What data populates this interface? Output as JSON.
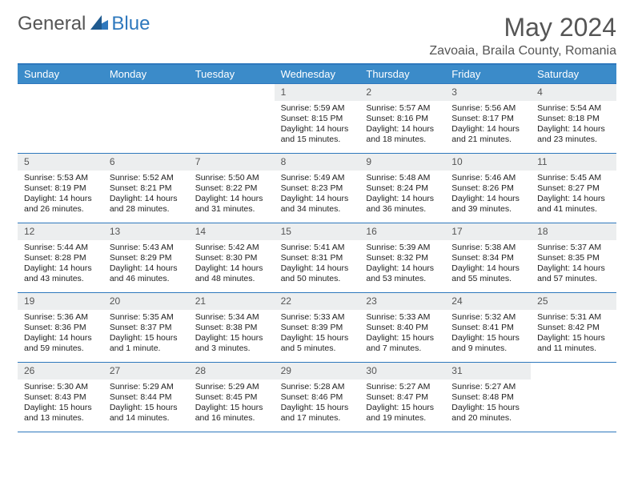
{
  "logo": {
    "general": "General",
    "blue": "Blue"
  },
  "title": "May 2024",
  "location": "Zavoaia, Braila County, Romania",
  "colors": {
    "header_bg": "#3b8bc9",
    "daynum_bg": "#eceeef",
    "border": "#2e78bd",
    "brand_blue": "#2e78bd",
    "text_gray": "#555555"
  },
  "daynames": [
    "Sunday",
    "Monday",
    "Tuesday",
    "Wednesday",
    "Thursday",
    "Friday",
    "Saturday"
  ],
  "weeks": [
    [
      {
        "n": "",
        "lines": []
      },
      {
        "n": "",
        "lines": []
      },
      {
        "n": "",
        "lines": []
      },
      {
        "n": "1",
        "lines": [
          "Sunrise: 5:59 AM",
          "Sunset: 8:15 PM",
          "Daylight: 14 hours and 15 minutes."
        ]
      },
      {
        "n": "2",
        "lines": [
          "Sunrise: 5:57 AM",
          "Sunset: 8:16 PM",
          "Daylight: 14 hours and 18 minutes."
        ]
      },
      {
        "n": "3",
        "lines": [
          "Sunrise: 5:56 AM",
          "Sunset: 8:17 PM",
          "Daylight: 14 hours and 21 minutes."
        ]
      },
      {
        "n": "4",
        "lines": [
          "Sunrise: 5:54 AM",
          "Sunset: 8:18 PM",
          "Daylight: 14 hours and 23 minutes."
        ]
      }
    ],
    [
      {
        "n": "5",
        "lines": [
          "Sunrise: 5:53 AM",
          "Sunset: 8:19 PM",
          "Daylight: 14 hours and 26 minutes."
        ]
      },
      {
        "n": "6",
        "lines": [
          "Sunrise: 5:52 AM",
          "Sunset: 8:21 PM",
          "Daylight: 14 hours and 28 minutes."
        ]
      },
      {
        "n": "7",
        "lines": [
          "Sunrise: 5:50 AM",
          "Sunset: 8:22 PM",
          "Daylight: 14 hours and 31 minutes."
        ]
      },
      {
        "n": "8",
        "lines": [
          "Sunrise: 5:49 AM",
          "Sunset: 8:23 PM",
          "Daylight: 14 hours and 34 minutes."
        ]
      },
      {
        "n": "9",
        "lines": [
          "Sunrise: 5:48 AM",
          "Sunset: 8:24 PM",
          "Daylight: 14 hours and 36 minutes."
        ]
      },
      {
        "n": "10",
        "lines": [
          "Sunrise: 5:46 AM",
          "Sunset: 8:26 PM",
          "Daylight: 14 hours and 39 minutes."
        ]
      },
      {
        "n": "11",
        "lines": [
          "Sunrise: 5:45 AM",
          "Sunset: 8:27 PM",
          "Daylight: 14 hours and 41 minutes."
        ]
      }
    ],
    [
      {
        "n": "12",
        "lines": [
          "Sunrise: 5:44 AM",
          "Sunset: 8:28 PM",
          "Daylight: 14 hours and 43 minutes."
        ]
      },
      {
        "n": "13",
        "lines": [
          "Sunrise: 5:43 AM",
          "Sunset: 8:29 PM",
          "Daylight: 14 hours and 46 minutes."
        ]
      },
      {
        "n": "14",
        "lines": [
          "Sunrise: 5:42 AM",
          "Sunset: 8:30 PM",
          "Daylight: 14 hours and 48 minutes."
        ]
      },
      {
        "n": "15",
        "lines": [
          "Sunrise: 5:41 AM",
          "Sunset: 8:31 PM",
          "Daylight: 14 hours and 50 minutes."
        ]
      },
      {
        "n": "16",
        "lines": [
          "Sunrise: 5:39 AM",
          "Sunset: 8:32 PM",
          "Daylight: 14 hours and 53 minutes."
        ]
      },
      {
        "n": "17",
        "lines": [
          "Sunrise: 5:38 AM",
          "Sunset: 8:34 PM",
          "Daylight: 14 hours and 55 minutes."
        ]
      },
      {
        "n": "18",
        "lines": [
          "Sunrise: 5:37 AM",
          "Sunset: 8:35 PM",
          "Daylight: 14 hours and 57 minutes."
        ]
      }
    ],
    [
      {
        "n": "19",
        "lines": [
          "Sunrise: 5:36 AM",
          "Sunset: 8:36 PM",
          "Daylight: 14 hours and 59 minutes."
        ]
      },
      {
        "n": "20",
        "lines": [
          "Sunrise: 5:35 AM",
          "Sunset: 8:37 PM",
          "Daylight: 15 hours and 1 minute."
        ]
      },
      {
        "n": "21",
        "lines": [
          "Sunrise: 5:34 AM",
          "Sunset: 8:38 PM",
          "Daylight: 15 hours and 3 minutes."
        ]
      },
      {
        "n": "22",
        "lines": [
          "Sunrise: 5:33 AM",
          "Sunset: 8:39 PM",
          "Daylight: 15 hours and 5 minutes."
        ]
      },
      {
        "n": "23",
        "lines": [
          "Sunrise: 5:33 AM",
          "Sunset: 8:40 PM",
          "Daylight: 15 hours and 7 minutes."
        ]
      },
      {
        "n": "24",
        "lines": [
          "Sunrise: 5:32 AM",
          "Sunset: 8:41 PM",
          "Daylight: 15 hours and 9 minutes."
        ]
      },
      {
        "n": "25",
        "lines": [
          "Sunrise: 5:31 AM",
          "Sunset: 8:42 PM",
          "Daylight: 15 hours and 11 minutes."
        ]
      }
    ],
    [
      {
        "n": "26",
        "lines": [
          "Sunrise: 5:30 AM",
          "Sunset: 8:43 PM",
          "Daylight: 15 hours and 13 minutes."
        ]
      },
      {
        "n": "27",
        "lines": [
          "Sunrise: 5:29 AM",
          "Sunset: 8:44 PM",
          "Daylight: 15 hours and 14 minutes."
        ]
      },
      {
        "n": "28",
        "lines": [
          "Sunrise: 5:29 AM",
          "Sunset: 8:45 PM",
          "Daylight: 15 hours and 16 minutes."
        ]
      },
      {
        "n": "29",
        "lines": [
          "Sunrise: 5:28 AM",
          "Sunset: 8:46 PM",
          "Daylight: 15 hours and 17 minutes."
        ]
      },
      {
        "n": "30",
        "lines": [
          "Sunrise: 5:27 AM",
          "Sunset: 8:47 PM",
          "Daylight: 15 hours and 19 minutes."
        ]
      },
      {
        "n": "31",
        "lines": [
          "Sunrise: 5:27 AM",
          "Sunset: 8:48 PM",
          "Daylight: 15 hours and 20 minutes."
        ]
      },
      {
        "n": "",
        "lines": []
      }
    ]
  ]
}
